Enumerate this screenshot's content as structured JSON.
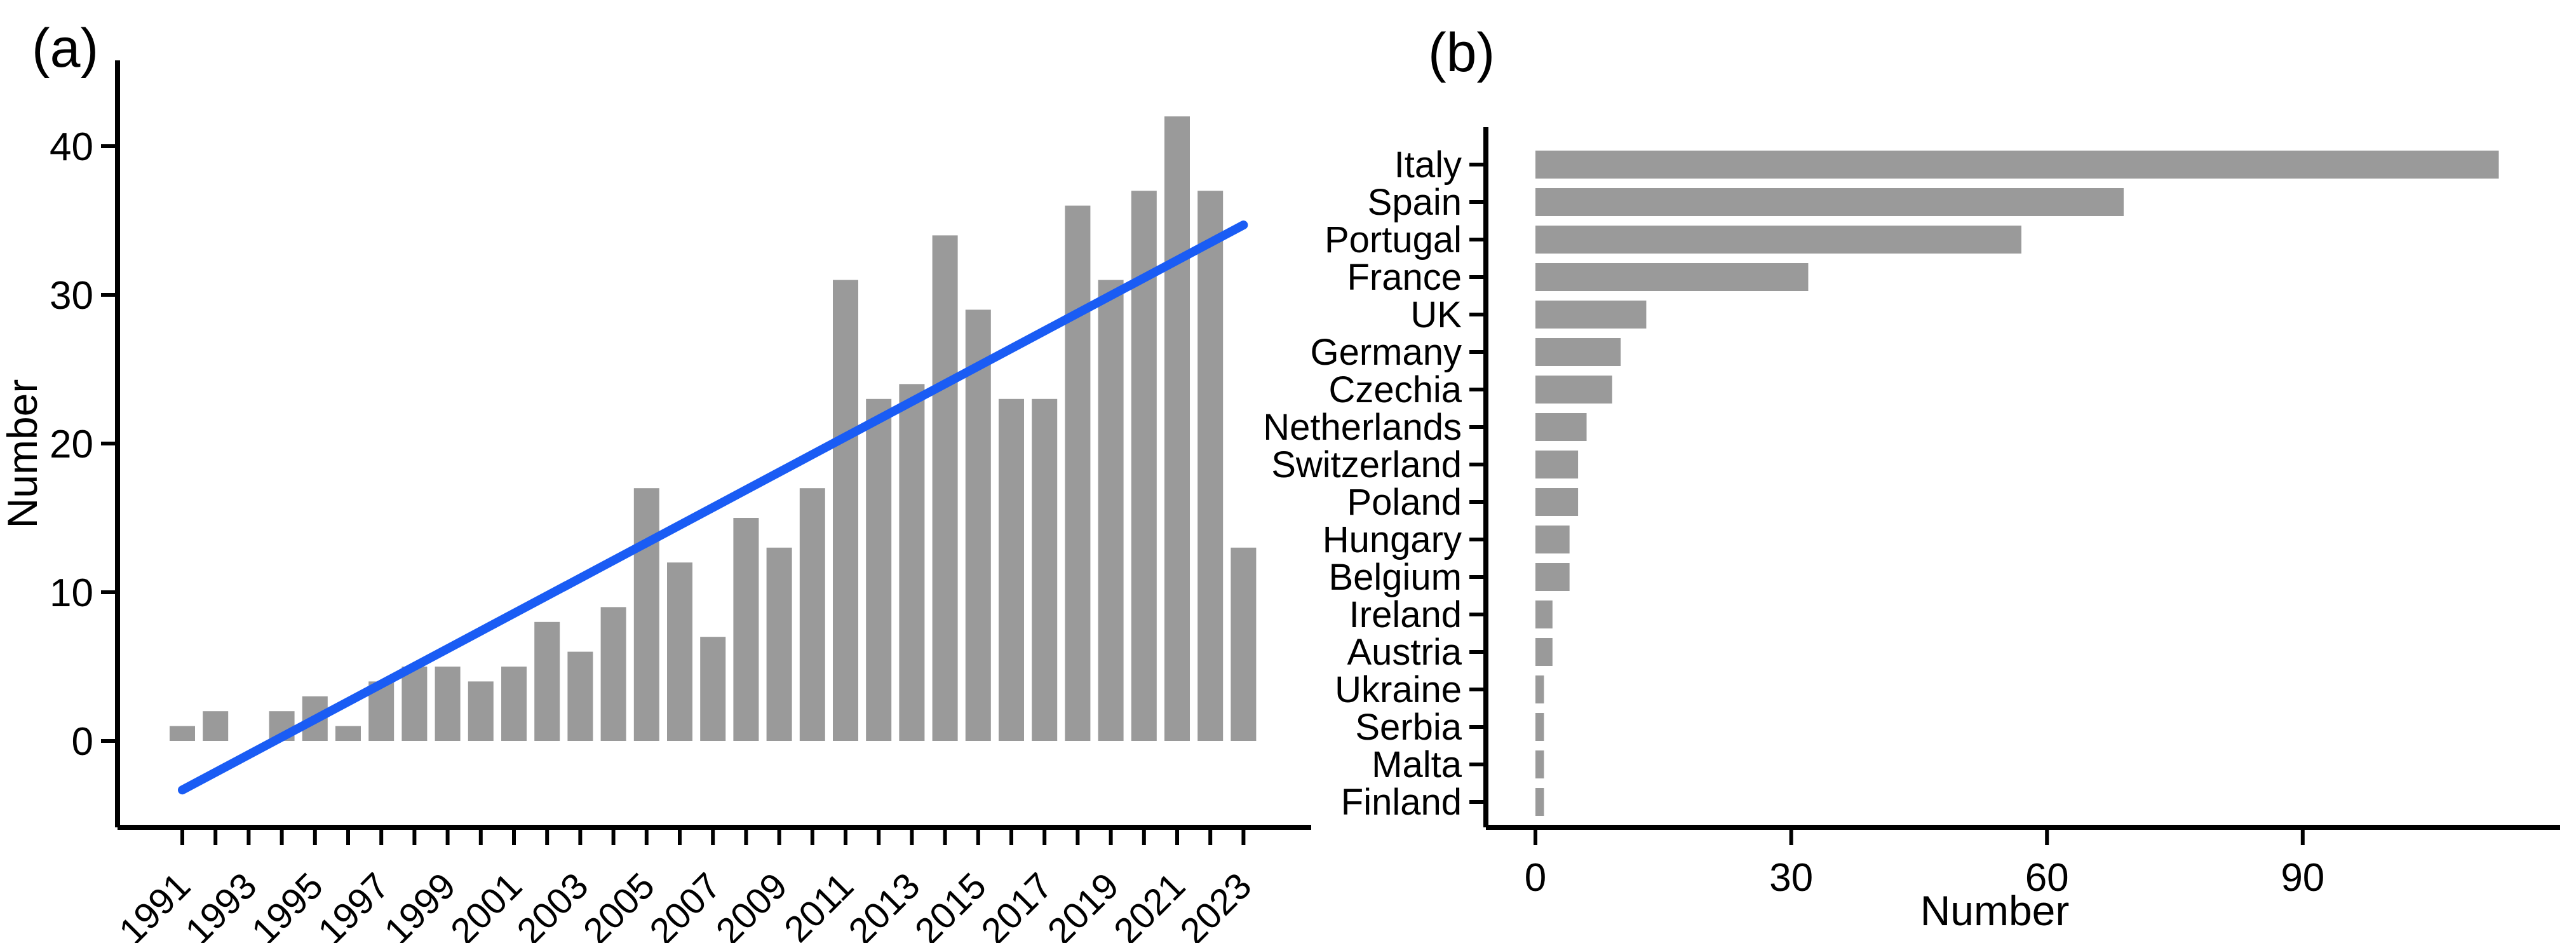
{
  "page": {
    "background": "#ffffff"
  },
  "chart_data": [
    {
      "id": "panel-a",
      "type": "bar",
      "panel_tag": "(a)",
      "ylabel": "Number",
      "categories": [
        1991,
        1992,
        1993,
        1994,
        1995,
        1996,
        1997,
        1998,
        1999,
        2000,
        2001,
        2002,
        2003,
        2004,
        2005,
        2006,
        2007,
        2008,
        2009,
        2010,
        2011,
        2012,
        2013,
        2014,
        2015,
        2016,
        2017,
        2018,
        2019,
        2020,
        2021,
        2022,
        2023
      ],
      "values": [
        1,
        2,
        0,
        2,
        3,
        1,
        4,
        5,
        5,
        4,
        5,
        8,
        6,
        9,
        17,
        12,
        7,
        15,
        13,
        17,
        31,
        23,
        24,
        34,
        29,
        23,
        23,
        36,
        31,
        37,
        42,
        37,
        13
      ],
      "yticks": [
        0,
        10,
        20,
        30,
        40
      ],
      "ytick_labels": [
        "0",
        "10",
        "20",
        "30",
        "40"
      ],
      "xtick_labeled_years": [
        1991,
        1993,
        1995,
        1997,
        1999,
        2001,
        2003,
        2005,
        2007,
        2009,
        2011,
        2013,
        2015,
        2017,
        2019,
        2021,
        2023
      ],
      "xtick_labels": [
        "1991",
        "1993",
        "1995",
        "1997",
        "1999",
        "2001",
        "2003",
        "2005",
        "2007",
        "2009",
        "2011",
        "2013",
        "2015",
        "2017",
        "2019",
        "2021",
        "2023"
      ],
      "ylim": [
        -6,
        46
      ],
      "grid": false,
      "legend": "none",
      "bar_color": "#9a9a9a",
      "trend_line": {
        "color": "#1a5cf4",
        "year_start": 1991,
        "value_start": -3.3,
        "year_end": 2023,
        "value_end": 34.7
      }
    },
    {
      "id": "panel-b",
      "type": "horizontal-bar",
      "panel_tag": "(b)",
      "xlabel": "Number",
      "categories": [
        "Italy",
        "Spain",
        "Portugal",
        "France",
        "UK",
        "Germany",
        "Czechia",
        "Netherlands",
        "Switzerland",
        "Poland",
        "Hungary",
        "Belgium",
        "Ireland",
        "Austria",
        "Ukraine",
        "Serbia",
        "Malta",
        "Finland"
      ],
      "values": [
        113,
        69,
        57,
        32,
        13,
        10,
        9,
        6,
        5,
        5,
        4,
        4,
        2,
        2,
        1,
        1,
        1,
        1
      ],
      "xticks": [
        0,
        30,
        60,
        90
      ],
      "xtick_labels": [
        "0",
        "30",
        "60",
        "90"
      ],
      "xlim": [
        0,
        120
      ],
      "grid": false,
      "legend": "none",
      "bar_color": "#9a9a9a"
    }
  ]
}
